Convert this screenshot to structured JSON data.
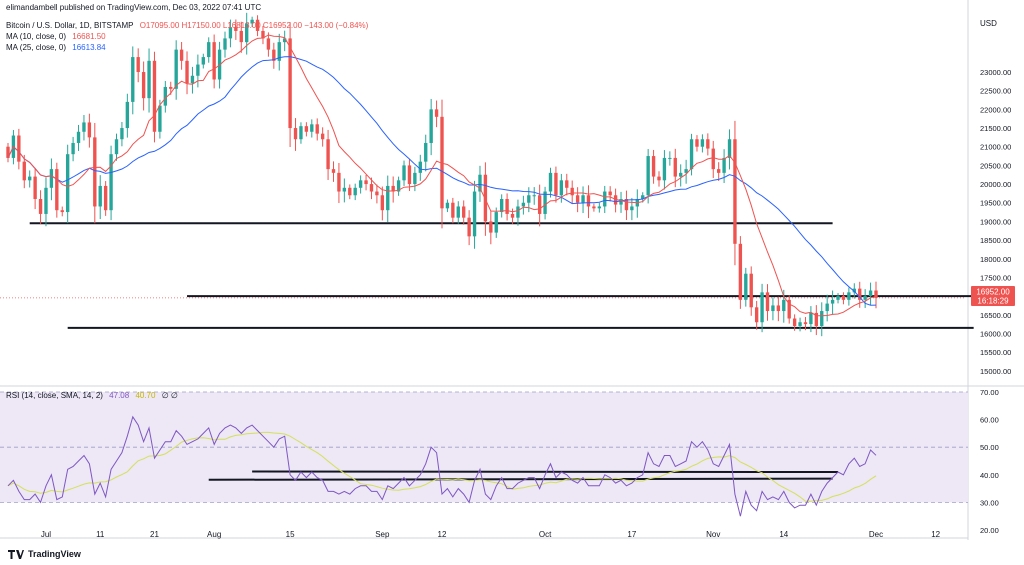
{
  "header": {
    "publisher": "elimandambell published on TradingView.com, Dec 03, 2022 07:41 UTC",
    "symbol": "Bitcoin / U.S. Dollar, 1D, BITSTAMP",
    "ohlc": "O17095.00  H17150.00  L16813.00  C16952.00  −143.00 (−0.84%)",
    "ma10_label": "MA (10, close, 0)",
    "ma10_value": "16681.50",
    "ma25_label": "MA (25, close, 0)",
    "ma25_value": "16613.84",
    "rsi_label": "RSI (14, close, SMA, 14, 2)",
    "rsi_value": "47.08",
    "rsi_sma_value": "40.70",
    "rsi_extra": "∅  ∅"
  },
  "price_tag": {
    "price": "16952.00",
    "countdown": "16:18:29"
  },
  "currency": "USD",
  "footer": {
    "brand": "TradingView"
  },
  "colors": {
    "up": "#26a69a",
    "down": "#ef5350",
    "ma10": "#ef5350",
    "ma25": "#2962ff",
    "rsi": "#7e57c2",
    "rsi_sma": "#d4e157",
    "rsi_band": "#ede7f6",
    "level": "#131722"
  },
  "chart_data": [
    {
      "type": "candlestick",
      "title": "Bitcoin / U.S. Dollar, 1D, BITSTAMP",
      "ylabel": "USD",
      "ylim": [
        14700,
        24500
      ],
      "y_ticks": [
        15000,
        15500,
        16000,
        16500,
        17000,
        17500,
        18000,
        18500,
        19000,
        19500,
        20000,
        20500,
        21000,
        21500,
        22000,
        22500,
        23000
      ],
      "x_ticks": [
        {
          "label": "Jul",
          "index": 7
        },
        {
          "label": "11",
          "index": 17
        },
        {
          "label": "21",
          "index": 27
        },
        {
          "label": "Aug",
          "index": 38
        },
        {
          "label": "15",
          "index": 52
        },
        {
          "label": "Sep",
          "index": 69
        },
        {
          "label": "12",
          "index": 80
        },
        {
          "label": "Oct",
          "index": 99
        },
        {
          "label": "17",
          "index": 115
        },
        {
          "label": "Nov",
          "index": 130
        },
        {
          "label": "14",
          "index": 143
        },
        {
          "label": "Dec",
          "index": 160
        },
        {
          "label": "12",
          "index": 171
        }
      ],
      "series_ma": [
        {
          "name": "MA (10, close, 0)",
          "last": 16681.5
        },
        {
          "name": "MA (25, close, 0)",
          "last": 16613.84
        }
      ],
      "horizontal_levels": [
        {
          "price": 18950,
          "from": 4,
          "to": 152
        },
        {
          "price": 17000,
          "from": 33,
          "to": 178
        },
        {
          "price": 16150,
          "from": 11,
          "to": 178
        }
      ],
      "last_price": 16952,
      "closes": [
        20700,
        21300,
        20600,
        20100,
        20200,
        19600,
        19200,
        19900,
        20400,
        19300,
        19250,
        20800,
        21100,
        21400,
        21650,
        21250,
        19400,
        19950,
        19300,
        20800,
        21200,
        21500,
        22200,
        23400,
        23000,
        22300,
        23300,
        21400,
        22100,
        22600,
        22550,
        23600,
        23300,
        22700,
        22900,
        23200,
        23400,
        23800,
        22800,
        23600,
        23900,
        24200,
        24100,
        23800,
        24300,
        24400,
        24100,
        23900,
        23600,
        23300,
        23800,
        23900,
        21500,
        21200,
        21550,
        21400,
        21600,
        21350,
        21200,
        20400,
        20300,
        19800,
        19900,
        19700,
        19900,
        20100,
        20000,
        19800,
        19700,
        19300,
        19950,
        19800,
        20100,
        20500,
        20000,
        20300,
        20600,
        21100,
        22000,
        21800,
        19350,
        19500,
        19100,
        19400,
        19100,
        18600,
        19800,
        20250,
        19000,
        18700,
        19250,
        19600,
        19200,
        19100,
        19400,
        19500,
        19700,
        19700,
        19200,
        19800,
        20300,
        19700,
        20100,
        19900,
        19700,
        19500,
        19700,
        19400,
        19350,
        19400,
        19800,
        19700,
        19450,
        19600,
        19300,
        19400,
        19600,
        19700,
        20750,
        20200,
        20100,
        20700,
        20700,
        20200,
        20300,
        20400,
        21200,
        21000,
        21200,
        20950,
        20400,
        20300,
        20700,
        21200,
        18400,
        16900,
        17600,
        16700,
        16300,
        17100,
        16600,
        16750,
        16600,
        16900,
        16400,
        16200,
        16300,
        16250,
        16550,
        16200,
        16600,
        16800,
        16900,
        17000,
        16900,
        17100,
        17200,
        16900,
        17000,
        17150,
        16952
      ]
    },
    {
      "type": "line",
      "title": "RSI (14, close, SMA, 14, 2)",
      "ylim": [
        20,
        70
      ],
      "y_ticks": [
        20,
        30,
        40,
        50,
        60,
        70
      ],
      "band": [
        30,
        70
      ],
      "midline": 50,
      "series": [
        {
          "name": "RSI",
          "last": 47.08
        },
        {
          "name": "RSI-based MA",
          "last": 40.7
        }
      ],
      "values": [
        36,
        38,
        34,
        31,
        31,
        33,
        30,
        36,
        40,
        31,
        32,
        42,
        43,
        45,
        47,
        44,
        33,
        37,
        32,
        42,
        45,
        48,
        54,
        61,
        58,
        52,
        57,
        46,
        49,
        52,
        52,
        56,
        54,
        51,
        52,
        53,
        55,
        57,
        51,
        55,
        57,
        58,
        57,
        55,
        57,
        58,
        56,
        54,
        52,
        50,
        53,
        54,
        40,
        38,
        41,
        39,
        41,
        39,
        38,
        34,
        34,
        33,
        34,
        33,
        35,
        36,
        36,
        34,
        34,
        31,
        36,
        35,
        37,
        39,
        36,
        38,
        40,
        44,
        50,
        48,
        33,
        35,
        32,
        35,
        33,
        30,
        38,
        42,
        33,
        31,
        36,
        39,
        35,
        35,
        37,
        38,
        39,
        39,
        35,
        40,
        44,
        39,
        41,
        40,
        38,
        37,
        39,
        36,
        36,
        36,
        40,
        39,
        37,
        38,
        36,
        37,
        39,
        40,
        48,
        44,
        43,
        47,
        47,
        43,
        44,
        45,
        52,
        50,
        52,
        49,
        44,
        43,
        47,
        51,
        33,
        25,
        34,
        29,
        27,
        34,
        31,
        32,
        31,
        34,
        30,
        28,
        29,
        29,
        33,
        29,
        34,
        37,
        39,
        41,
        40,
        44,
        46,
        43,
        44,
        49,
        47.08
      ]
    }
  ]
}
